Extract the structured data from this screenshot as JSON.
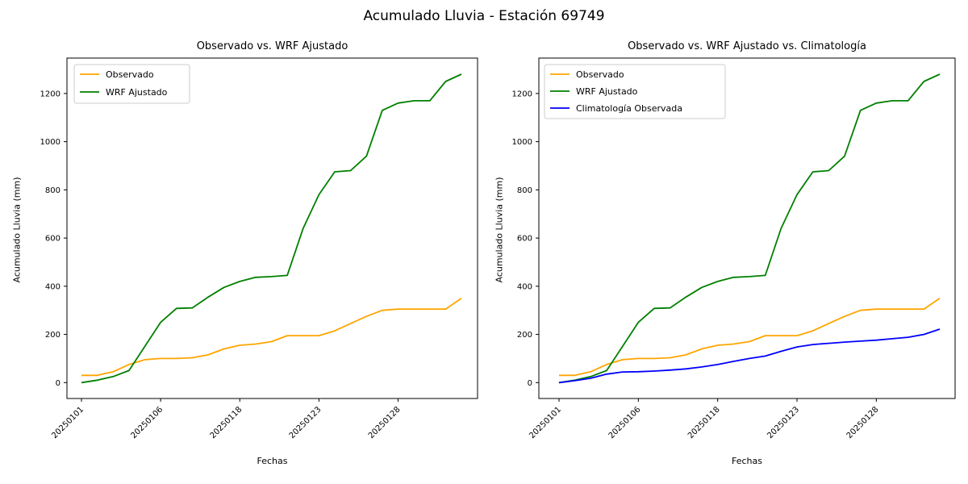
{
  "suptitle": "Acumulado Lluvia - Estación 69749",
  "colors": {
    "background": "#ffffff",
    "axes": "#000000",
    "legend_border": "#cccccc",
    "observado": "#ffa500",
    "wrf_ajustado": "#008000",
    "climatologia": "#0000ff"
  },
  "chart_data": [
    {
      "type": "line",
      "title": "Observado vs. WRF Ajustado",
      "xlabel": "Fechas",
      "ylabel": "Acumulado Lluvia (mm)",
      "n_points": 25,
      "x_tick_positions": [
        0,
        5,
        10,
        15,
        20
      ],
      "x_tick_labels": [
        "20250101",
        "20250106",
        "20250118",
        "20250123",
        "20250128"
      ],
      "x_tick_rotation_deg": 45,
      "y_ticks": [
        0,
        200,
        400,
        600,
        800,
        1000,
        1200
      ],
      "ylim": [
        -66,
        1347
      ],
      "grid": false,
      "legend_position": "upper left",
      "series": [
        {
          "name": "Observado",
          "color": "#ffa500",
          "values": [
            30,
            30,
            45,
            75,
            95,
            100,
            100,
            103,
            115,
            140,
            155,
            160,
            170,
            195,
            195,
            195,
            215,
            245,
            275,
            300,
            305,
            305,
            305,
            305,
            350
          ]
        },
        {
          "name": "WRF Ajustado",
          "color": "#008000",
          "values": [
            0,
            10,
            25,
            50,
            150,
            250,
            308,
            310,
            355,
            395,
            420,
            437,
            440,
            445,
            640,
            780,
            875,
            880,
            940,
            1130,
            1160,
            1170,
            1170,
            1250,
            1280
          ]
        }
      ]
    },
    {
      "type": "line",
      "title": "Observado vs. WRF Ajustado vs. Climatología",
      "xlabel": "Fechas",
      "ylabel": "Acumulado Lluvia (mm)",
      "n_points": 25,
      "x_tick_positions": [
        0,
        5,
        10,
        15,
        20
      ],
      "x_tick_labels": [
        "20250101",
        "20250106",
        "20250118",
        "20250123",
        "20250128"
      ],
      "x_tick_rotation_deg": 45,
      "y_ticks": [
        0,
        200,
        400,
        600,
        800,
        1000,
        1200
      ],
      "ylim": [
        -66,
        1347
      ],
      "grid": false,
      "legend_position": "upper left",
      "series": [
        {
          "name": "Observado",
          "color": "#ffa500",
          "values": [
            30,
            30,
            45,
            75,
            95,
            100,
            100,
            103,
            115,
            140,
            155,
            160,
            170,
            195,
            195,
            195,
            215,
            245,
            275,
            300,
            305,
            305,
            305,
            305,
            350
          ]
        },
        {
          "name": "WRF Ajustado",
          "color": "#008000",
          "values": [
            0,
            10,
            25,
            50,
            150,
            250,
            308,
            310,
            355,
            395,
            420,
            437,
            440,
            445,
            640,
            780,
            875,
            880,
            940,
            1130,
            1160,
            1170,
            1170,
            1250,
            1280
          ]
        },
        {
          "name": "Climatología Observada",
          "color": "#0000ff",
          "values": [
            0,
            8,
            18,
            35,
            44,
            45,
            48,
            52,
            57,
            65,
            75,
            88,
            100,
            110,
            130,
            148,
            158,
            163,
            168,
            172,
            176,
            182,
            188,
            200,
            222
          ]
        }
      ]
    }
  ]
}
